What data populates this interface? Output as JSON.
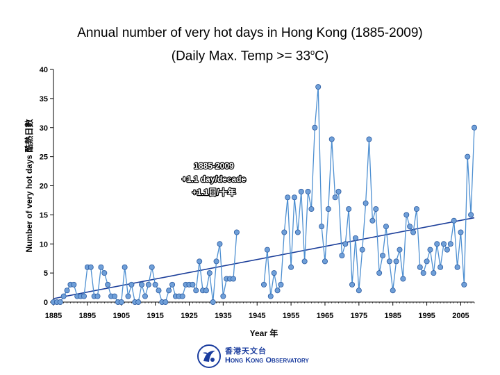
{
  "title_line1": "Annual number of very hot days in Hong Kong (1885-2009)",
  "title_line2_pre": "(Daily Max. Temp >= 33",
  "title_line2_sup": "o",
  "title_line2_post": "C)",
  "logo": {
    "cn": "香港天文台",
    "en": "Hong Kong Observatory"
  },
  "chart_data": {
    "type": "line",
    "xlabel": "Year 年",
    "ylabel": "Number of very hot days 酷熱日數",
    "xlim": [
      1885,
      2009
    ],
    "ylim": [
      0,
      40
    ],
    "xticks": [
      1885,
      1895,
      1905,
      1915,
      1925,
      1935,
      1945,
      1955,
      1965,
      1975,
      1985,
      1995,
      2005
    ],
    "yticks": [
      0,
      5,
      10,
      15,
      20,
      25,
      30,
      35,
      40
    ],
    "grid": false,
    "annotation": [
      "1885-2009",
      "+1.1 day/decade",
      "+1.1日/十年"
    ],
    "colors": {
      "line": "#4d8fd1",
      "marker_fill": "#6f9fd8",
      "marker_edge": "#2a5aa0",
      "trend": "#1a3d99"
    },
    "trend": {
      "x": [
        1885,
        2009
      ],
      "y": [
        0.6,
        14.5
      ]
    },
    "series": [
      {
        "segments": [
          {
            "x": [
              1885,
              1886,
              1887,
              1888,
              1889,
              1890,
              1891,
              1892,
              1893,
              1894,
              1895,
              1896,
              1897,
              1898,
              1899,
              1900,
              1901,
              1902,
              1903,
              1904,
              1905,
              1906,
              1907,
              1908,
              1909,
              1910,
              1911,
              1912,
              1913,
              1914,
              1915,
              1916,
              1917,
              1918,
              1919,
              1920,
              1921,
              1922,
              1923,
              1924,
              1925,
              1926,
              1927,
              1928,
              1929,
              1930,
              1931,
              1932,
              1933,
              1934,
              1935,
              1936,
              1937,
              1938,
              1939
            ],
            "y": [
              0,
              0,
              0,
              1,
              2,
              3,
              3,
              1,
              1,
              1,
              6,
              6,
              1,
              1,
              6,
              5,
              3,
              1,
              1,
              0,
              0,
              6,
              1,
              3,
              0,
              0,
              3,
              1,
              3,
              6,
              3,
              2,
              0,
              0,
              2,
              3,
              1,
              1,
              1,
              3,
              3,
              3,
              2,
              7,
              2,
              2,
              5,
              0,
              7,
              10,
              1,
              4,
              4,
              4,
              12
            ]
          },
          {
            "x": [
              1947,
              1948,
              1949,
              1950,
              1951,
              1952,
              1953,
              1954,
              1955,
              1956,
              1957,
              1958,
              1959,
              1960,
              1961,
              1962,
              1963,
              1964,
              1965,
              1966,
              1967,
              1968,
              1969,
              1970,
              1971,
              1972,
              1973,
              1974,
              1975,
              1976,
              1977,
              1978,
              1979,
              1980,
              1981,
              1982,
              1983,
              1984,
              1985,
              1986,
              1987,
              1988,
              1989,
              1990,
              1991,
              1992,
              1993,
              1994,
              1995,
              1996,
              1997,
              1998,
              1999,
              2000,
              2001,
              2002,
              2003,
              2004,
              2005,
              2006,
              2007,
              2008,
              2009
            ],
            "y": [
              3,
              9,
              1,
              5,
              2,
              3,
              12,
              18,
              6,
              18,
              12,
              19,
              7,
              19,
              16,
              30,
              37,
              13,
              7,
              16,
              28,
              18,
              19,
              8,
              10,
              16,
              3,
              11,
              2,
              9,
              17,
              28,
              14,
              16,
              5,
              8,
              13,
              7,
              2,
              7,
              9,
              4,
              15,
              13,
              12,
              16,
              6,
              5,
              7,
              9,
              5,
              10,
              6,
              10,
              9,
              10,
              14,
              6,
              12,
              3,
              25,
              15,
              30
            ]
          }
        ]
      }
    ]
  }
}
